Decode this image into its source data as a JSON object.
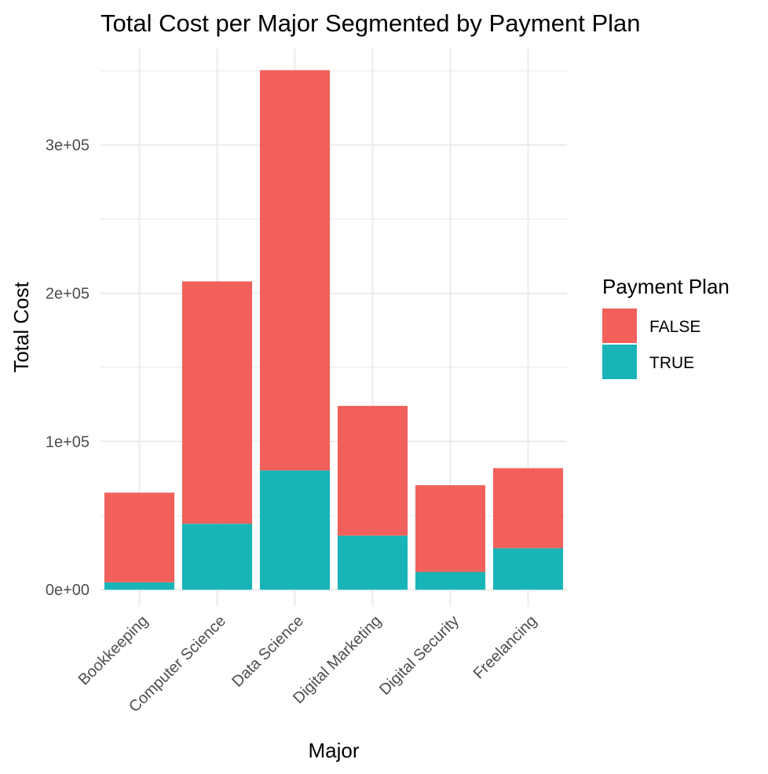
{
  "chart_data": {
    "type": "bar",
    "stacked": true,
    "title": "Total Cost per Major Segmented by Payment Plan",
    "xlabel": "Major",
    "ylabel": "Total Cost",
    "categories": [
      "Bookkeeping",
      "Computer Science",
      "Data Science",
      "Digital Marketing",
      "Digital Security",
      "Freelancing"
    ],
    "series": [
      {
        "name": "TRUE",
        "color": "#19B4B8",
        "values": [
          5000,
          44500,
          80500,
          36500,
          12000,
          28000
        ]
      },
      {
        "name": "FALSE",
        "color": "#F2605B",
        "values": [
          60500,
          163500,
          270000,
          87500,
          58500,
          54000
        ]
      }
    ],
    "ylim": [
      -11000,
      365000
    ],
    "yticks": [
      0,
      100000,
      200000,
      300000
    ],
    "ytick_labels": [
      "0e+00",
      "1e+05",
      "2e+05",
      "3e+05"
    ],
    "grid": true,
    "legend": {
      "title": "Payment Plan",
      "position": "right",
      "items": [
        "FALSE",
        "TRUE"
      ]
    }
  }
}
